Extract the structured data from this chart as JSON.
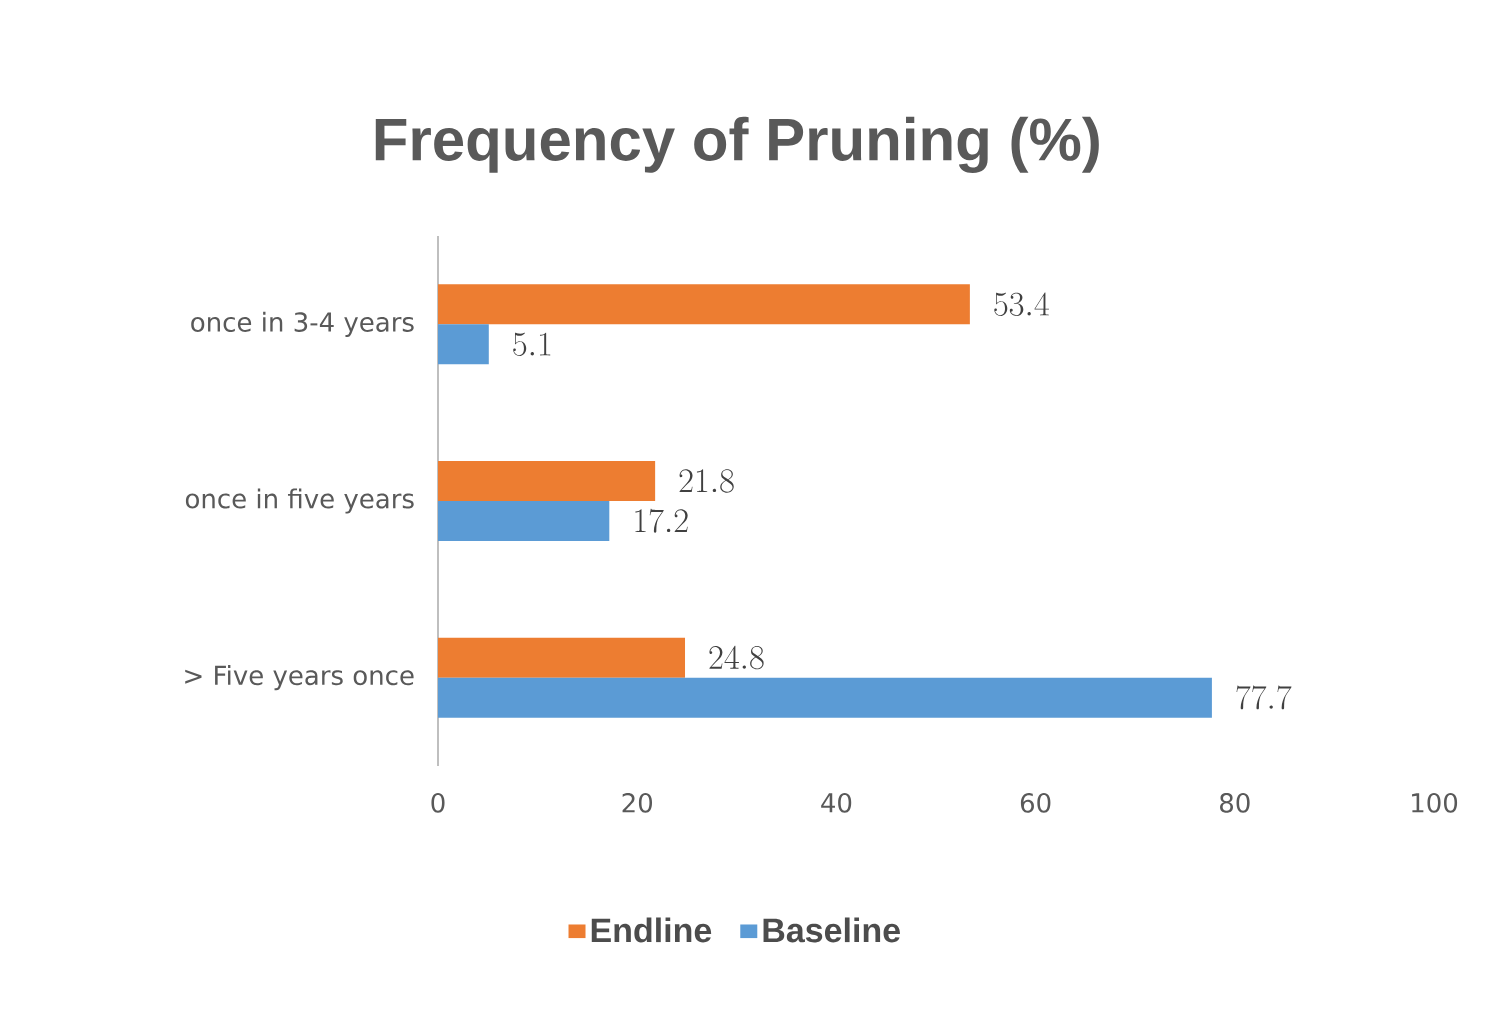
{
  "chart_data": {
    "type": "bar",
    "orientation": "horizontal",
    "title": "Frequency of Pruning (%)",
    "categories": [
      "once in 3-4 years",
      "once in five years",
      "> Five years once"
    ],
    "series": [
      {
        "name": "Endline",
        "color": "#ed7d31",
        "values": [
          53.4,
          21.8,
          24.8
        ]
      },
      {
        "name": "Baseline",
        "color": "#5b9bd5",
        "values": [
          5.1,
          17.2,
          77.7
        ]
      }
    ],
    "xlim": [
      0,
      100
    ],
    "xticks": [
      0,
      20,
      40,
      60,
      80,
      100
    ],
    "data_labels": true,
    "legend": "bottom",
    "grid": false
  }
}
